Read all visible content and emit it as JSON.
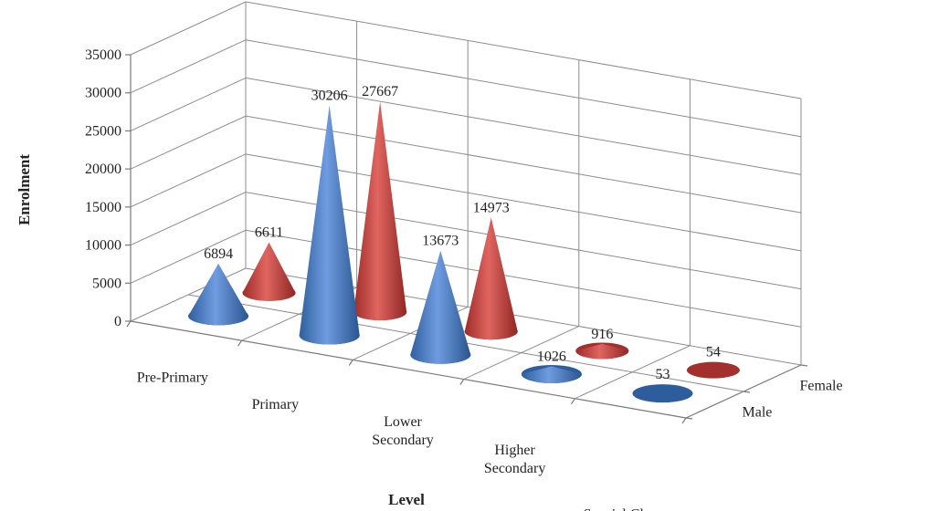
{
  "chart_data": {
    "type": "bar",
    "shape": "cone-3d",
    "categories": [
      "Pre-Primary",
      "Primary",
      "Lower Secondary",
      "Higher Secondary",
      "Special Classes"
    ],
    "series": [
      {
        "name": "Male",
        "values": [
          6894,
          30206,
          13673,
          1026,
          53
        ],
        "color": "#4a7fd0"
      },
      {
        "name": "Female",
        "values": [
          6611,
          27667,
          14973,
          916,
          54
        ],
        "color": "#c8403c"
      }
    ],
    "yticks": [
      "0",
      "5000",
      "10000",
      "15000",
      "20000",
      "25000",
      "30000",
      "35000"
    ],
    "ylim": [
      0,
      35000
    ],
    "ylabel": "Enrolment",
    "xlabel": "Level",
    "grid": true
  }
}
